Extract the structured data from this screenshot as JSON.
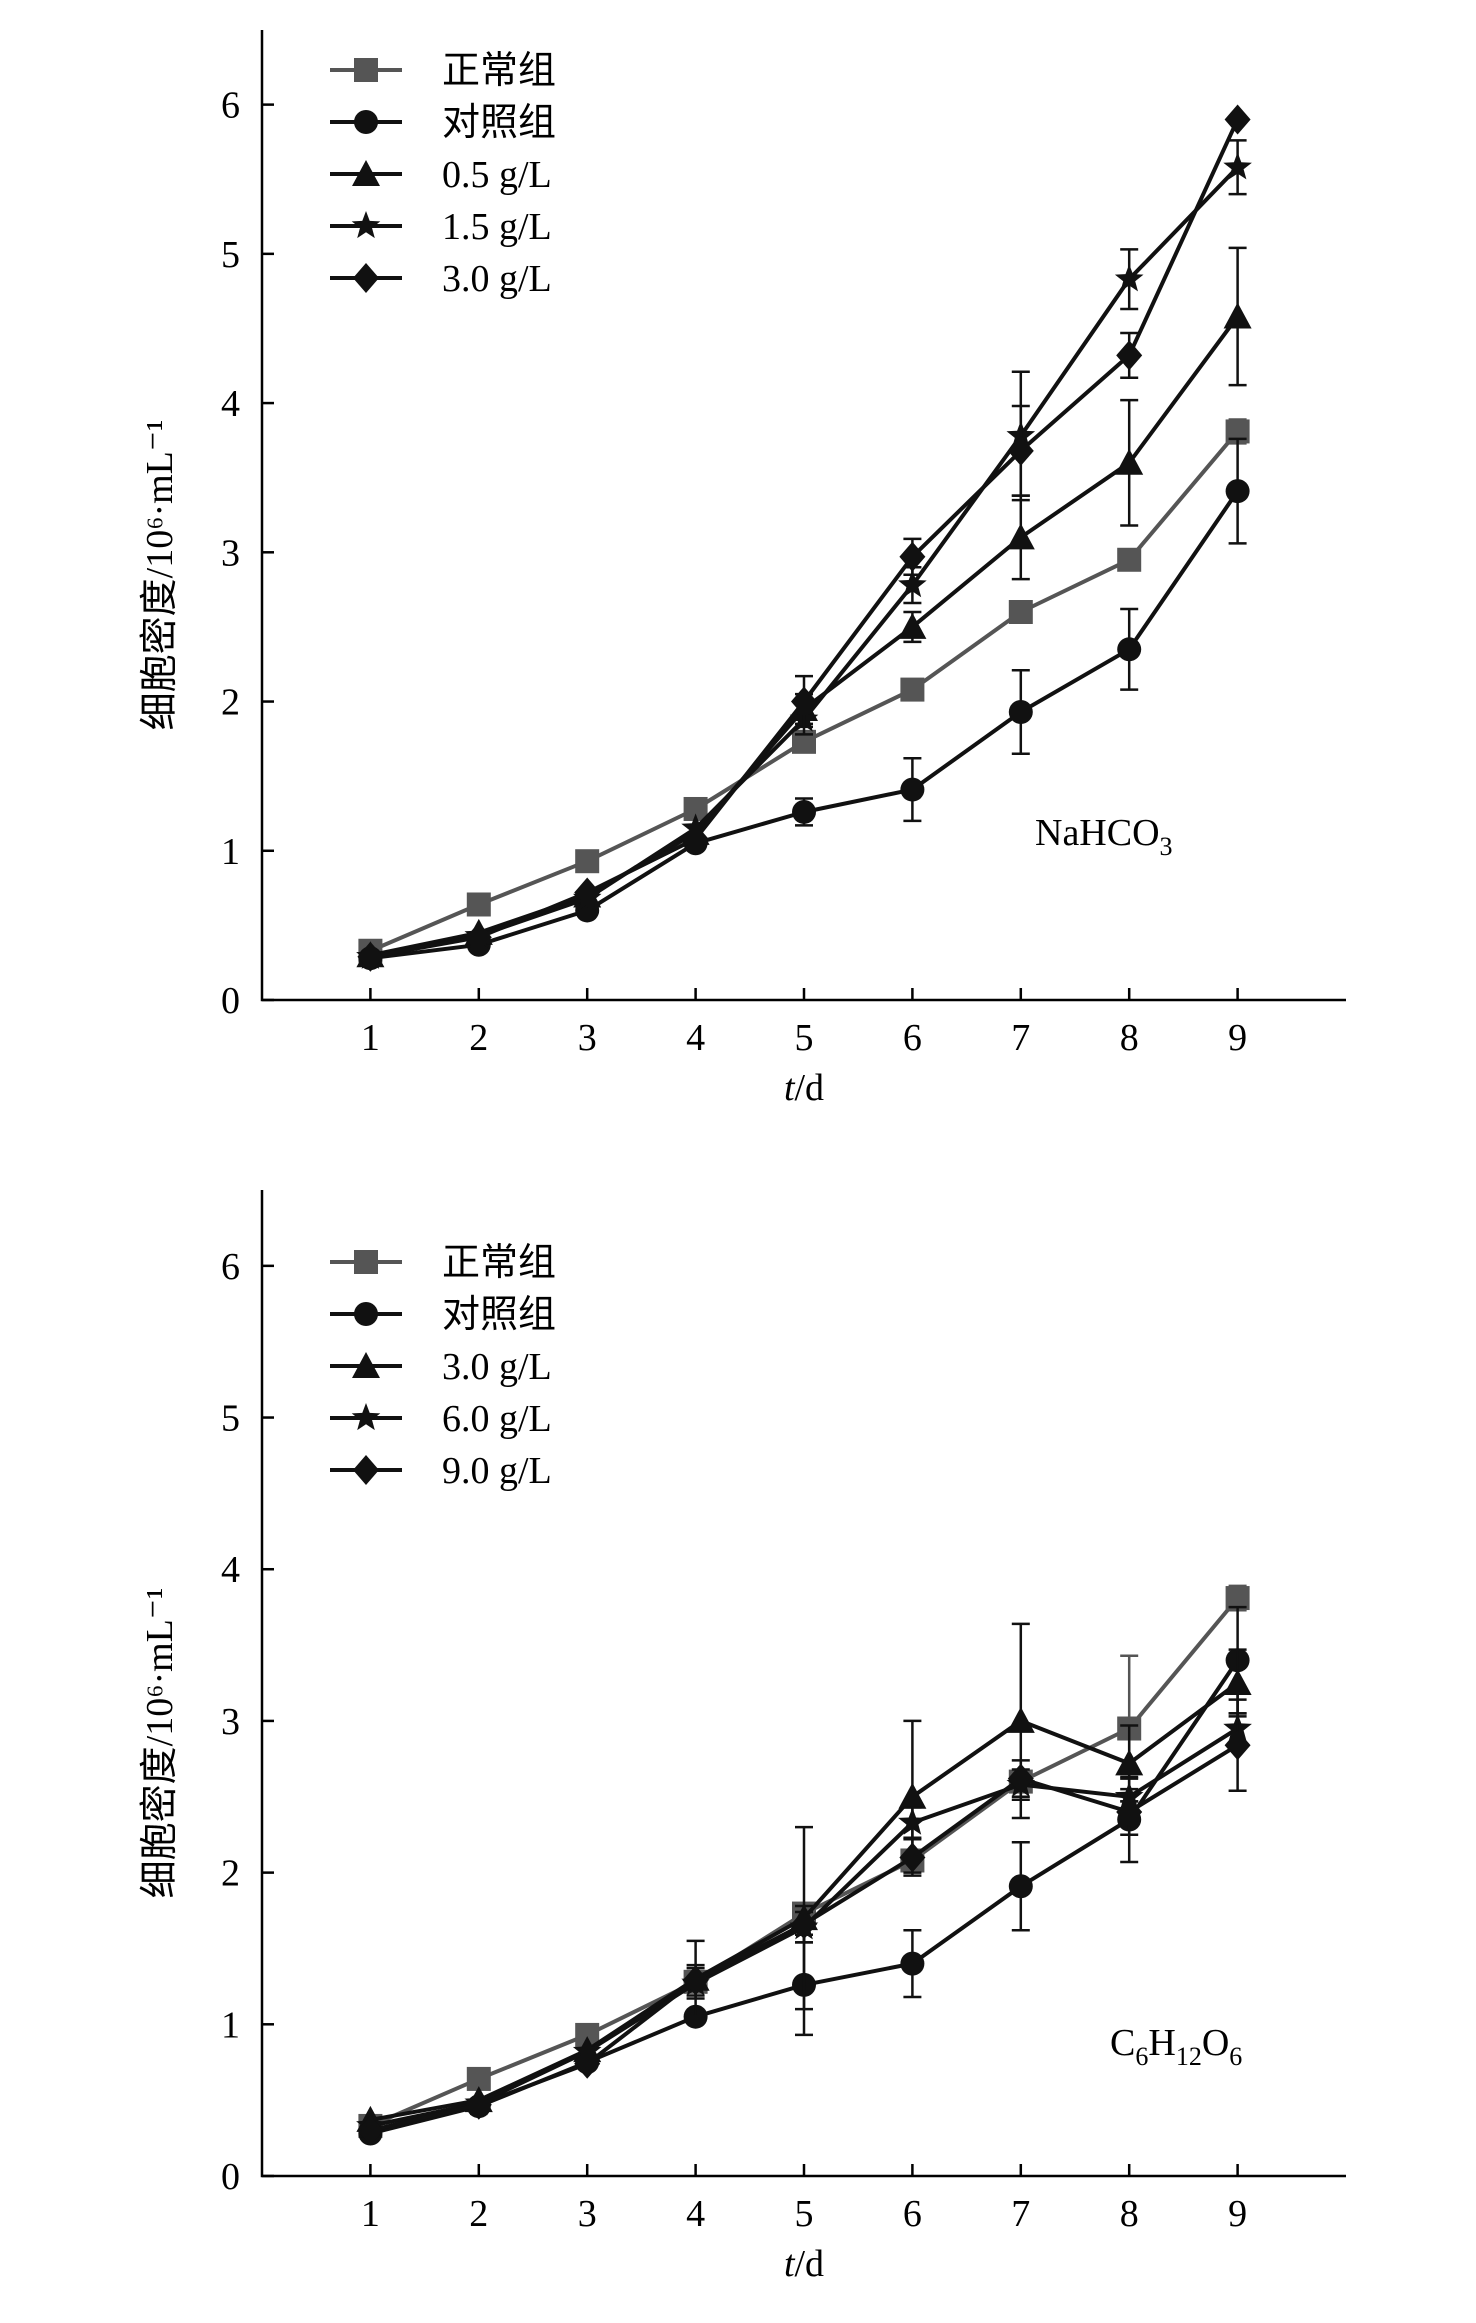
{
  "chart_data": [
    {
      "type": "line",
      "ylabel": "细胞密度/10⁶·mL⁻¹",
      "xlabel_italic": "t",
      "xlabel_rest": "/d",
      "x": [
        1,
        2,
        3,
        4,
        5,
        6,
        7,
        8,
        9
      ],
      "xlim": [
        0,
        10
      ],
      "ylim": [
        0,
        6.5
      ],
      "yticks": [
        0,
        1,
        2,
        3,
        4,
        5,
        6
      ],
      "legend_position": "top-left",
      "annotation": {
        "main": "NaHCO",
        "sub": "3"
      },
      "series": [
        {
          "name": "正常组",
          "marker": "square",
          "color": "#555555",
          "values": [
            0.33,
            0.64,
            0.93,
            1.28,
            1.73,
            2.08,
            2.6,
            2.95,
            3.81
          ],
          "errors": [
            0.03,
            0.03,
            0.04,
            0.04,
            0.06,
            0.05,
            0.07,
            0.05,
            0.08
          ]
        },
        {
          "name": "对照组",
          "marker": "circle",
          "color": "#111111",
          "values": [
            0.28,
            0.37,
            0.6,
            1.05,
            1.26,
            1.41,
            1.93,
            2.35,
            3.41
          ],
          "errors": [
            0.03,
            0.03,
            0.04,
            0.04,
            0.09,
            0.21,
            0.28,
            0.27,
            0.35
          ]
        },
        {
          "name": "0.5 g/L",
          "marker": "triangle",
          "color": "#111111",
          "values": [
            0.3,
            0.45,
            0.7,
            1.12,
            1.95,
            2.5,
            3.1,
            3.6,
            4.58
          ],
          "errors": [
            0.02,
            0.03,
            0.04,
            0.05,
            0.1,
            0.1,
            0.28,
            0.42,
            0.46
          ]
        },
        {
          "name": "1.5 g/L",
          "marker": "star",
          "color": "#111111",
          "values": [
            0.29,
            0.43,
            0.68,
            1.15,
            1.88,
            2.78,
            3.78,
            4.83,
            5.58
          ],
          "errors": [
            0.02,
            0.03,
            0.04,
            0.05,
            0.1,
            0.12,
            0.43,
            0.2,
            0.18
          ]
        },
        {
          "name": "3.0 g/L",
          "marker": "diamond",
          "color": "#111111",
          "values": [
            0.29,
            0.42,
            0.72,
            1.08,
            2.0,
            2.97,
            3.68,
            4.32,
            5.9
          ],
          "errors": [
            0.02,
            0.03,
            0.04,
            0.05,
            0.17,
            0.12,
            0.3,
            0.15,
            0.06
          ]
        }
      ]
    },
    {
      "type": "line",
      "ylabel": "细胞密度/10⁶·mL⁻¹",
      "xlabel_italic": "t",
      "xlabel_rest": "/d",
      "x": [
        1,
        2,
        3,
        4,
        5,
        6,
        7,
        8,
        9
      ],
      "xlim": [
        0,
        10
      ],
      "ylim": [
        0,
        6.5
      ],
      "yticks": [
        0,
        1,
        2,
        3,
        4,
        5,
        6
      ],
      "legend_position": "top-left",
      "annotation": {
        "main": "C",
        "sub1": "6",
        "mid1": "H",
        "sub2": "12",
        "mid2": "O",
        "sub3": "6"
      },
      "series": [
        {
          "name": "正常组",
          "marker": "square",
          "color": "#555555",
          "values": [
            0.33,
            0.64,
            0.93,
            1.28,
            1.73,
            2.08,
            2.6,
            2.95,
            3.81
          ],
          "errors": [
            0.03,
            0.03,
            0.04,
            0.04,
            0.05,
            0.06,
            0.07,
            0.48,
            0.08
          ]
        },
        {
          "name": "对照组",
          "marker": "circle",
          "color": "#111111",
          "values": [
            0.28,
            0.46,
            0.75,
            1.05,
            1.26,
            1.4,
            1.91,
            2.35,
            3.4
          ],
          "errors": [
            0.03,
            0.03,
            0.04,
            0.04,
            0.33,
            0.22,
            0.29,
            0.28,
            0.35
          ]
        },
        {
          "name": "3.0 g/L",
          "marker": "triangle",
          "color": "#111111",
          "values": [
            0.37,
            0.5,
            0.83,
            1.3,
            1.7,
            2.5,
            3.0,
            2.72,
            3.25
          ],
          "errors": [
            0.03,
            0.04,
            0.05,
            0.25,
            0.6,
            0.5,
            0.64,
            0.25,
            0.22
          ]
        },
        {
          "name": "6.0 g/L",
          "marker": "star",
          "color": "#111111",
          "values": [
            0.33,
            0.48,
            0.82,
            1.27,
            1.64,
            2.33,
            2.58,
            2.5,
            2.95
          ],
          "errors": [
            0.03,
            0.04,
            0.05,
            0.1,
            0.1,
            0.1,
            0.1,
            0.12,
            0.1
          ]
        },
        {
          "name": "9.0 g/L",
          "marker": "diamond",
          "color": "#111111",
          "values": [
            0.3,
            0.47,
            0.74,
            1.29,
            1.66,
            2.1,
            2.62,
            2.4,
            2.84
          ],
          "errors": [
            0.03,
            0.04,
            0.05,
            0.1,
            0.12,
            0.12,
            0.12,
            0.15,
            0.3
          ]
        }
      ]
    }
  ]
}
